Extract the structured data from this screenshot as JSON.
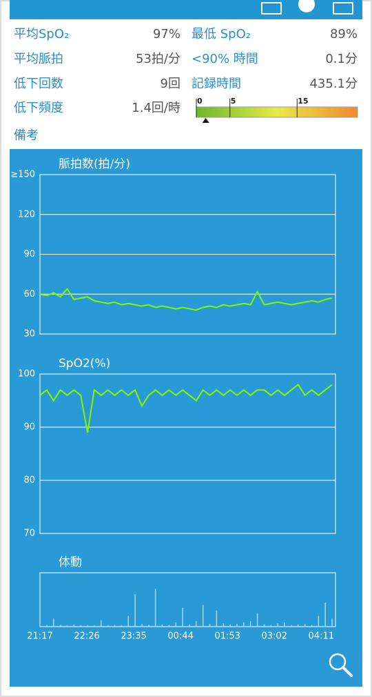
{
  "stats": [
    {
      "label": "平均SpO₂",
      "value": "97%"
    },
    {
      "label": "最低 SpO₂",
      "value": "89%"
    },
    {
      "label": "平均脈拍",
      "value": "53拍/分"
    },
    {
      "label": "<90% 時間",
      "value": "0.1分"
    },
    {
      "label": "低下回数",
      "value": "9回"
    },
    {
      "label": "記録時間",
      "value": "435.1分"
    },
    {
      "label": "低下頻度",
      "value": "1.4回/時"
    }
  ],
  "gauge": {
    "value": 1.4,
    "lim": [
      0,
      24
    ],
    "ticks": [
      0,
      5,
      15
    ]
  },
  "note_label": "備考",
  "chart_data": [
    {
      "type": "line",
      "title": "脈拍数(拍/分)",
      "x": [
        0,
        10,
        20,
        30,
        40,
        50,
        60,
        70,
        80,
        90,
        100,
        110,
        120,
        130,
        140,
        150,
        160,
        170,
        180,
        190,
        200,
        210,
        220,
        230,
        240,
        250,
        260,
        270,
        280,
        290,
        300,
        310,
        320,
        330,
        340,
        350,
        360,
        370,
        380,
        390,
        400,
        410,
        420,
        430
      ],
      "series": [
        {
          "color": "#7cfc00",
          "values": [
            60,
            59,
            61,
            58,
            64,
            56,
            57,
            58,
            55,
            54,
            53,
            54,
            52,
            53,
            52,
            51,
            52,
            50,
            51,
            50,
            49,
            50,
            49,
            48,
            50,
            51,
            50,
            52,
            51,
            52,
            53,
            52,
            62,
            52,
            53,
            54,
            53,
            52,
            53,
            54,
            55,
            54,
            56,
            57
          ]
        }
      ],
      "xlim": [
        0,
        435
      ],
      "ylim": [
        30,
        150
      ],
      "yticks": [
        30,
        60,
        90,
        120,
        {
          "value": 150,
          "label": "≥150"
        }
      ],
      "grid": true
    },
    {
      "type": "line",
      "title": "SpO2(%)",
      "x": [
        0,
        10,
        20,
        30,
        40,
        50,
        60,
        70,
        80,
        90,
        100,
        110,
        120,
        130,
        140,
        150,
        160,
        170,
        180,
        190,
        200,
        210,
        220,
        230,
        240,
        250,
        260,
        270,
        280,
        290,
        300,
        310,
        320,
        330,
        340,
        350,
        360,
        370,
        380,
        390,
        400,
        410,
        420,
        430
      ],
      "series": [
        {
          "color": "#7cfc00",
          "values": [
            96,
            97,
            95,
            97,
            96,
            97,
            96,
            89,
            97,
            96,
            97,
            96,
            97,
            96,
            97,
            94,
            96,
            97,
            96,
            97,
            96,
            97,
            96,
            95,
            97,
            96,
            97,
            96,
            97,
            96,
            97,
            96,
            97,
            97,
            96,
            97,
            96,
            97,
            98,
            96,
            97,
            96,
            97,
            98
          ]
        }
      ],
      "xlim": [
        0,
        435
      ],
      "ylim": [
        70,
        100
      ],
      "yticks": [
        70,
        80,
        90,
        100
      ],
      "grid": true
    },
    {
      "type": "bar",
      "title": "体動",
      "x": [
        0,
        10,
        20,
        30,
        40,
        50,
        60,
        70,
        80,
        90,
        100,
        110,
        120,
        130,
        140,
        150,
        160,
        170,
        180,
        190,
        200,
        210,
        220,
        230,
        240,
        250,
        260,
        270,
        280,
        290,
        300,
        310,
        320,
        330,
        340,
        350,
        360,
        370,
        380,
        390,
        400,
        410,
        420,
        430
      ],
      "series": [
        {
          "color": "#9fdcf7",
          "values": [
            2,
            3,
            15,
            3,
            2,
            4,
            2,
            3,
            2,
            12,
            2,
            3,
            2,
            20,
            60,
            5,
            3,
            70,
            4,
            3,
            8,
            35,
            4,
            10,
            40,
            5,
            30,
            6,
            4,
            5,
            8,
            10,
            25,
            4,
            3,
            6,
            8,
            3,
            4,
            5,
            3,
            20,
            45,
            15
          ]
        }
      ],
      "xlim": [
        0,
        435
      ],
      "ylim": [
        0,
        100
      ],
      "xticks": [
        {
          "value": 0,
          "label": "21:17"
        },
        {
          "value": 69,
          "label": "22:26"
        },
        {
          "value": 138,
          "label": "23:35"
        },
        {
          "value": 207,
          "label": "00:44"
        },
        {
          "value": 276,
          "label": "01:53"
        },
        {
          "value": 345,
          "label": "03:02"
        },
        {
          "value": 414,
          "label": "04:11"
        }
      ]
    }
  ]
}
